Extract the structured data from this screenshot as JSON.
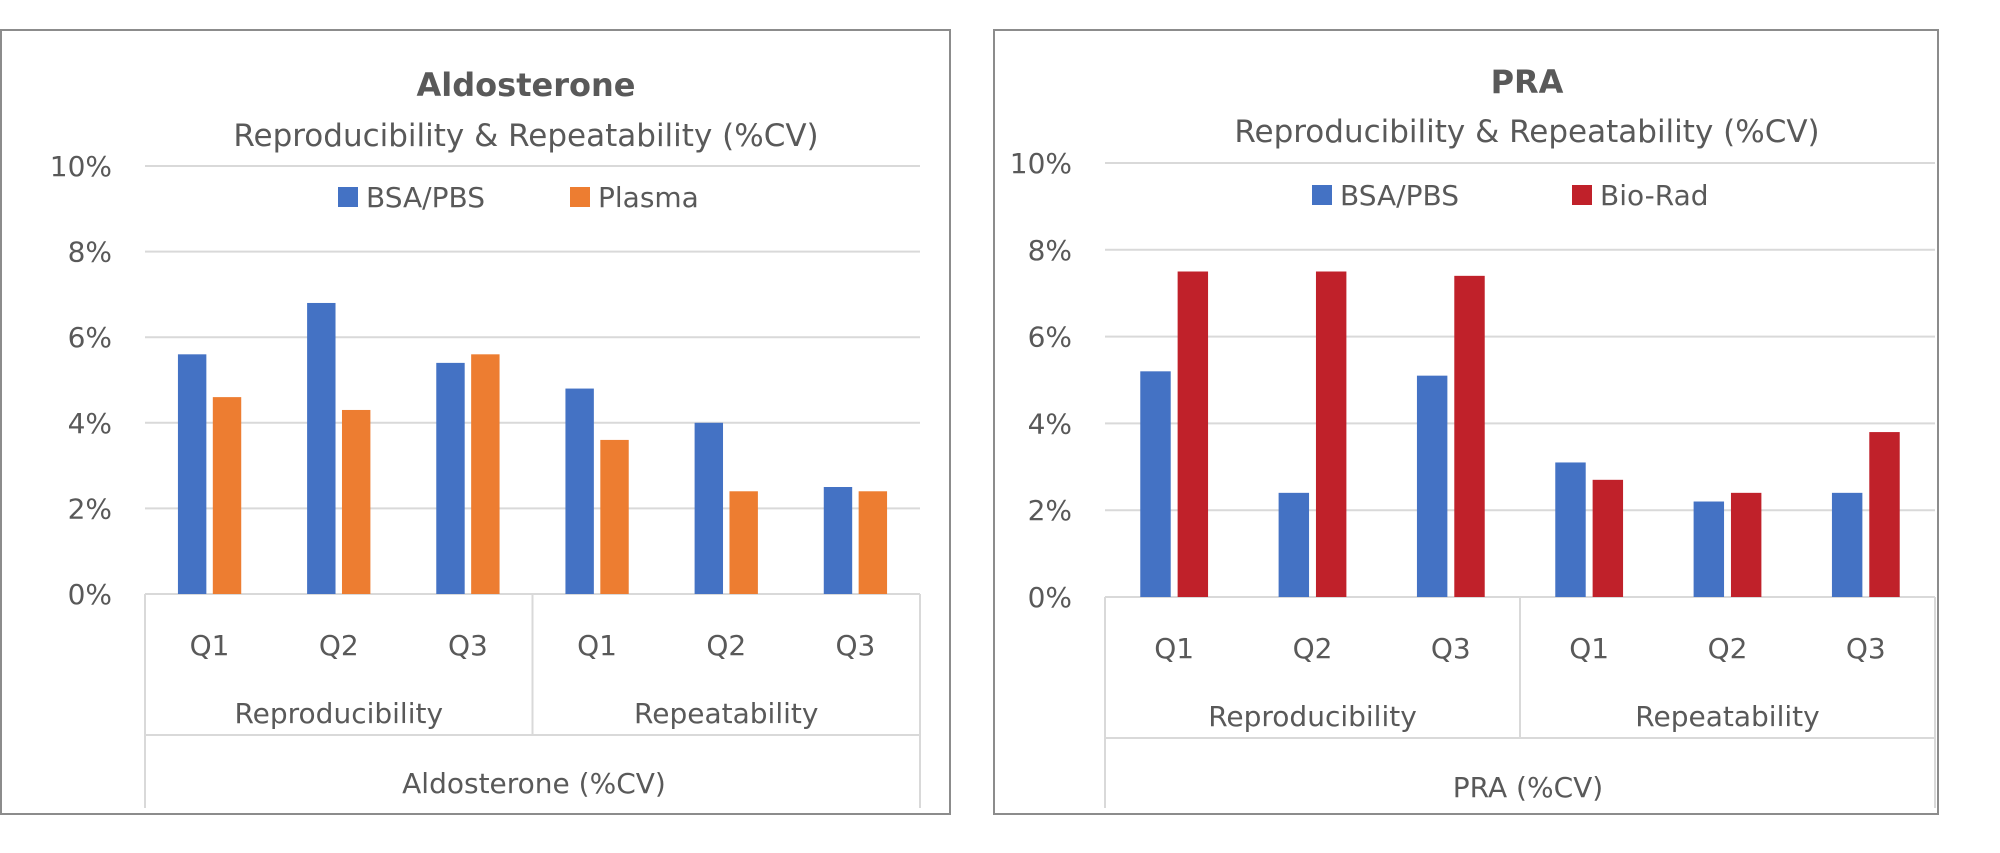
{
  "chart_data": [
    {
      "type": "bar",
      "title": "Aldosterone",
      "subtitle": "Reproducibility & Repeatability (%CV)",
      "xlabel": "Aldosterone (%CV)",
      "ylabel": "",
      "ylim": [
        0,
        10
      ],
      "yticks": [
        0,
        2,
        4,
        6,
        8,
        10
      ],
      "tick_suffix": "%",
      "grid": true,
      "legend_position": "top",
      "groups": [
        "Reproducibility",
        "Repeatability"
      ],
      "categories": [
        "Q1",
        "Q2",
        "Q3",
        "Q1",
        "Q2",
        "Q3"
      ],
      "series": [
        {
          "name": "BSA/PBS",
          "color": "#4472c4",
          "values": [
            5.6,
            6.8,
            5.4,
            4.8,
            4.0,
            2.5
          ]
        },
        {
          "name": "Plasma",
          "color": "#ed7d31",
          "values": [
            4.6,
            4.3,
            5.6,
            3.6,
            2.4,
            2.4
          ]
        }
      ]
    },
    {
      "type": "bar",
      "title": "PRA",
      "subtitle": "Reproducibility & Repeatability (%CV)",
      "xlabel": "PRA (%CV)",
      "ylabel": "",
      "ylim": [
        0,
        10
      ],
      "yticks": [
        0,
        2,
        4,
        6,
        8,
        10
      ],
      "tick_suffix": "%",
      "grid": true,
      "legend_position": "top",
      "groups": [
        "Reproducibility",
        "Repeatability"
      ],
      "categories": [
        "Q1",
        "Q2",
        "Q3",
        "Q1",
        "Q2",
        "Q3"
      ],
      "series": [
        {
          "name": "BSA/PBS",
          "color": "#4472c4",
          "values": [
            5.2,
            2.4,
            5.1,
            3.1,
            2.2,
            2.4
          ]
        },
        {
          "name": "Bio-Rad",
          "color": "#c0212a",
          "values": [
            7.5,
            7.5,
            7.4,
            2.7,
            2.4,
            3.8
          ]
        }
      ]
    }
  ]
}
